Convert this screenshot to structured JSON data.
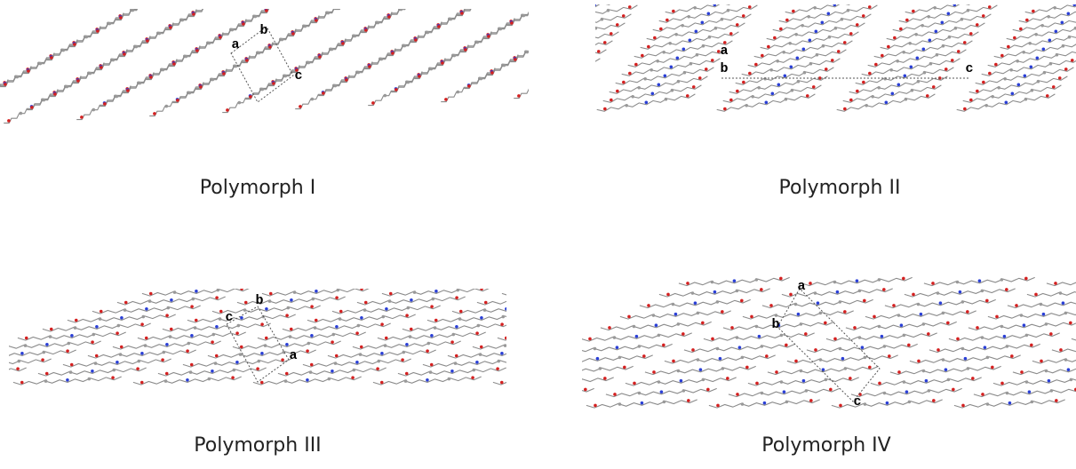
{
  "panels": [
    {
      "caption": "Polymorph I",
      "axis_labels": [
        "a",
        "b",
        "c"
      ]
    },
    {
      "caption": "Polymorph II",
      "axis_labels": [
        "a",
        "b",
        "c"
      ]
    },
    {
      "caption": "Polymorph III",
      "axis_labels": [
        "a",
        "b",
        "c"
      ]
    },
    {
      "caption": "Polymorph IV",
      "axis_labels": [
        "a",
        "b",
        "c"
      ]
    }
  ]
}
